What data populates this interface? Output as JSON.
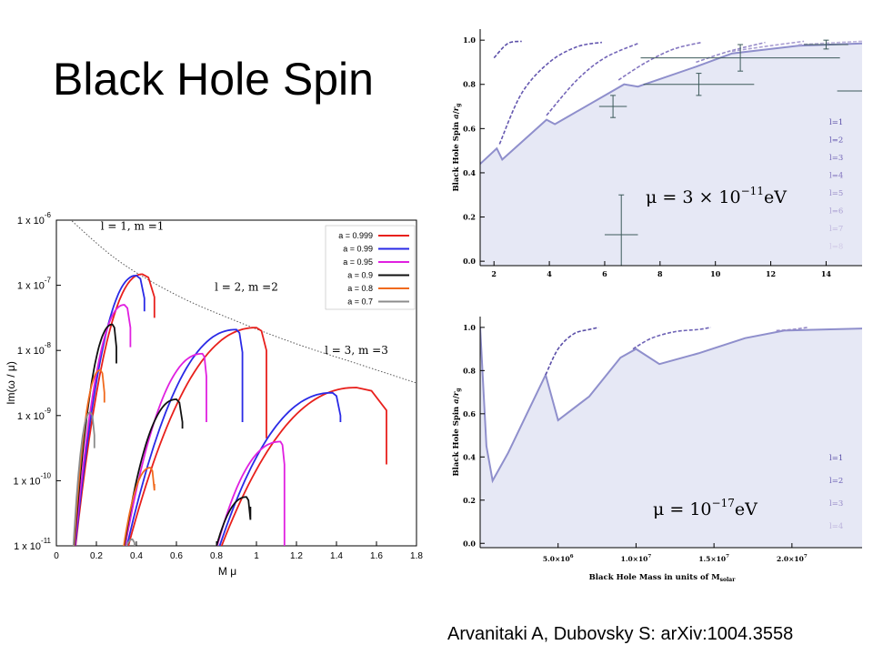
{
  "slide": {
    "title": "Black Hole Spin",
    "citation": "Arvanitaki A, Dubovsky S:  arXiv:1004.3558"
  },
  "chart_data": [
    {
      "id": "superradiance-rates",
      "type": "line",
      "xlabel": "M μ",
      "ylabel": "Im(ω / μ)",
      "xlim": [
        0,
        1.8
      ],
      "ylim_log10": [
        -11,
        -6
      ],
      "x_ticks": [
        "0",
        "0.2",
        "0.4",
        "0.6",
        "0.8",
        "1",
        "1.2",
        "1.4",
        "1.6",
        "1.8"
      ],
      "y_ticks": [
        {
          "mant": "1 x 10",
          "exp": "-6"
        },
        {
          "mant": "1 x 10",
          "exp": "-7"
        },
        {
          "mant": "1 x 10",
          "exp": "-8"
        },
        {
          "mant": "1 x 10",
          "exp": "-9"
        },
        {
          "mant": "1 x 10",
          "exp": "-10"
        },
        {
          "mant": "1 x 10",
          "exp": "-11"
        }
      ],
      "grid": false,
      "legend_position": "top-right",
      "legend": [
        {
          "label": "a = 0.999",
          "color": "#e8201c"
        },
        {
          "label": "a = 0.99",
          "color": "#2a2ae6"
        },
        {
          "label": "a = 0.95",
          "color": "#e020e0"
        },
        {
          "label": "a = 0.9",
          "color": "#111111"
        },
        {
          "label": "a = 0.8",
          "color": "#f06a1e"
        },
        {
          "label": "a = 0.7",
          "color": "#8c8c8c"
        }
      ],
      "annotations": [
        "l = 1, m =1",
        "l = 2, m =2",
        "l = 3, m =3"
      ],
      "series": [
        {
          "name": "a = 0.999",
          "color": "#e8201c",
          "curves": [
            {
              "start": 0.075,
              "peak_x": 0.43,
              "peak_log": -6.83,
              "end": 0.49,
              "end_log": -7.5
            },
            {
              "start": 0.31,
              "peak_x": 1.0,
              "peak_log": -7.65,
              "end": 1.05,
              "end_log": -9.35
            },
            {
              "start": 0.755,
              "peak_x": 1.5,
              "peak_log": -8.57,
              "end": 1.65,
              "end_log": -9.75
            }
          ]
        },
        {
          "name": "a = 0.99",
          "color": "#2a2ae6",
          "curves": [
            {
              "start": 0.075,
              "peak_x": 0.4,
              "peak_log": -6.85,
              "end": 0.44,
              "end_log": -7.4
            },
            {
              "start": 0.31,
              "peak_x": 0.9,
              "peak_log": -7.68,
              "end": 0.93,
              "end_log": -9.1
            },
            {
              "start": 0.755,
              "peak_x": 1.38,
              "peak_log": -8.65,
              "end": 1.42,
              "end_log": -9.1
            }
          ]
        },
        {
          "name": "a = 0.95",
          "color": "#e020e0",
          "curves": [
            {
              "start": 0.075,
              "peak_x": 0.34,
              "peak_log": -7.3,
              "end": 0.37,
              "end_log": -7.95
            },
            {
              "start": 0.31,
              "peak_x": 0.73,
              "peak_log": -8.05,
              "end": 0.75,
              "end_log": -9.1
            },
            {
              "start": 0.755,
              "peak_x": 1.12,
              "peak_log": -9.4,
              "end": 1.14,
              "end_log": -11
            }
          ]
        },
        {
          "name": "a = 0.9",
          "color": "#111111",
          "curves": [
            {
              "start": 0.075,
              "peak_x": 0.28,
              "peak_log": -7.6,
              "end": 0.3,
              "end_log": -8.2
            },
            {
              "start": 0.31,
              "peak_x": 0.6,
              "peak_log": -8.75,
              "end": 0.63,
              "end_log": -9.2
            },
            {
              "start": 0.755,
              "peak_x": 0.95,
              "peak_log": -10.25,
              "end": 0.97,
              "end_log": -10.4
            }
          ]
        },
        {
          "name": "a = 0.8",
          "color": "#f06a1e",
          "curves": [
            {
              "start": 0.075,
              "peak_x": 0.22,
              "peak_log": -8.3,
              "end": 0.24,
              "end_log": -8.8
            },
            {
              "start": 0.31,
              "peak_x": 0.47,
              "peak_log": -9.8,
              "end": 0.49,
              "end_log": -10.05
            }
          ]
        },
        {
          "name": "a = 0.7",
          "color": "#8c8c8c",
          "curves": [
            {
              "start": 0.075,
              "peak_x": 0.17,
              "peak_log": -8.95,
              "end": 0.19,
              "end_log": -9.5
            },
            {
              "start": 0.31,
              "peak_x": 0.38,
              "peak_log": -10.9,
              "end": 0.4,
              "end_log": -11
            }
          ]
        }
      ],
      "dotted_envelope": [
        [
          0.02,
          -5.85
        ],
        [
          0.3,
          -6.6
        ],
        [
          0.6,
          -7.15
        ],
        [
          0.9,
          -7.55
        ],
        [
          1.2,
          -7.9
        ],
        [
          1.5,
          -8.2
        ],
        [
          1.8,
          -8.5
        ]
      ]
    },
    {
      "id": "spin-exclusion-top",
      "type": "area",
      "xlabel": "",
      "ylabel": "Black Hole Spin a/r_g",
      "ylabel_parts": {
        "text": "Black Hole Spin",
        "num": "a",
        "den": "r",
        "den_sub": "g"
      },
      "xlim": [
        1.5,
        15.3
      ],
      "ylim": [
        -0.02,
        1.05
      ],
      "x_ticks": [
        "2",
        "4",
        "6",
        "8",
        "10",
        "12",
        "14"
      ],
      "y_ticks": [
        "0.0",
        "0.2",
        "0.4",
        "0.6",
        "0.8",
        "1.0"
      ],
      "grid": false,
      "shaded_region_color": "#e6e8f5",
      "mass_label": {
        "prefix": "μ = 3 × 10",
        "exp": "−11",
        "unit": "eV"
      },
      "legend_position": "right",
      "legend": [
        {
          "label": "l=1",
          "color": "#5b4fa8"
        },
        {
          "label": "l=2",
          "color": "#6558b0"
        },
        {
          "label": "l=3",
          "color": "#7466b8"
        },
        {
          "label": "l=4",
          "color": "#8476c0"
        },
        {
          "label": "l=5",
          "color": "#968ac8"
        },
        {
          "label": "l=6",
          "color": "#a99ed2"
        },
        {
          "label": "l=7",
          "color": "#bdb4dc"
        },
        {
          "label": "l=8",
          "color": "#d0c9e6"
        }
      ],
      "boundary": [
        [
          1.5,
          0.44
        ],
        [
          2.1,
          0.51
        ],
        [
          2.3,
          0.46
        ],
        [
          3.9,
          0.64
        ],
        [
          4.2,
          0.62
        ],
        [
          6.7,
          0.8
        ],
        [
          7.2,
          0.79
        ],
        [
          9.3,
          0.88
        ],
        [
          10.6,
          0.94
        ],
        [
          13.0,
          0.975
        ],
        [
          15.3,
          0.985
        ]
      ],
      "dashed_curves": [
        {
          "color": "#5b4fa8",
          "points": [
            [
              2.0,
              0.92
            ],
            [
              2.5,
              0.985
            ],
            [
              3.0,
              0.995
            ]
          ]
        },
        {
          "color": "#6558b0",
          "points": [
            [
              2.2,
              0.53
            ],
            [
              3.0,
              0.76
            ],
            [
              4.0,
              0.9
            ],
            [
              5.0,
              0.97
            ],
            [
              5.9,
              0.99
            ]
          ]
        },
        {
          "color": "#7466b8",
          "points": [
            [
              3.9,
              0.66
            ],
            [
              5.0,
              0.82
            ],
            [
              6.0,
              0.92
            ],
            [
              7.2,
              0.985
            ]
          ]
        },
        {
          "color": "#8476c0",
          "points": [
            [
              6.5,
              0.82
            ],
            [
              7.5,
              0.9
            ],
            [
              8.5,
              0.96
            ],
            [
              9.5,
              0.99
            ]
          ]
        },
        {
          "color": "#968ac8",
          "points": [
            [
              9.3,
              0.9
            ],
            [
              10.5,
              0.95
            ],
            [
              11.8,
              0.99
            ]
          ]
        },
        {
          "color": "#a99ed2",
          "points": [
            [
              10.6,
              0.95
            ],
            [
              12.0,
              0.975
            ],
            [
              13.2,
              0.995
            ]
          ]
        },
        {
          "color": "#bdb4dc",
          "points": [
            [
              13.0,
              0.98
            ],
            [
              14.5,
              0.99
            ],
            [
              15.3,
              0.995
            ]
          ]
        }
      ],
      "error_bars": [
        {
          "x": 6.3,
          "y": 0.7,
          "xerr": 0.5,
          "yerr": 0.05
        },
        {
          "x": 6.6,
          "y": 0.12,
          "xerr": 0.6,
          "yerr": 0.18
        },
        {
          "x": 9.4,
          "y": 0.8,
          "xerr": 2.0,
          "yerr": 0.05
        },
        {
          "x": 10.9,
          "y": 0.92,
          "xerr": 3.6,
          "yerr": 0.06
        },
        {
          "x": 14.0,
          "y": 0.98,
          "xerr": 0.8,
          "yerr": 0.02
        },
        {
          "x": 15.0,
          "y": 0.77,
          "xerr": 0.6,
          "yerr": 0.0
        }
      ]
    },
    {
      "id": "spin-exclusion-bottom",
      "type": "area",
      "xlabel": "Black Hole Mass in units of M_solar",
      "xlabel_parts": {
        "text": "Black Hole Mass in units of M",
        "sub": "solar"
      },
      "ylabel": "Black Hole Spin a/r_g",
      "ylabel_parts": {
        "text": "Black Hole Spin",
        "num": "a",
        "den": "r",
        "den_sub": "g"
      },
      "xlim": [
        0,
        24.5
      ],
      "x_unit": "10^6",
      "ylim": [
        -0.02,
        1.05
      ],
      "x_ticks": [
        {
          "mant": "5.0×10",
          "exp": "6",
          "value": 5
        },
        {
          "mant": "1.0×10",
          "exp": "7",
          "value": 10
        },
        {
          "mant": "1.5×10",
          "exp": "7",
          "value": 15
        },
        {
          "mant": "2.0×10",
          "exp": "7",
          "value": 20
        }
      ],
      "y_ticks": [
        "0.0",
        "0.2",
        "0.4",
        "0.6",
        "0.8",
        "1.0"
      ],
      "grid": false,
      "shaded_region_color": "#e6e8f5",
      "mass_label": {
        "prefix": "μ = 10",
        "exp": "−17",
        "unit": "eV"
      },
      "legend_position": "right",
      "legend": [
        {
          "label": "l=1",
          "color": "#5b4fa8"
        },
        {
          "label": "l=2",
          "color": "#6e63b6"
        },
        {
          "label": "l=3",
          "color": "#968ac8"
        },
        {
          "label": "l=4",
          "color": "#bdb4dc"
        }
      ],
      "boundary": [
        [
          0,
          1.0
        ],
        [
          0.4,
          0.45
        ],
        [
          0.8,
          0.29
        ],
        [
          1.8,
          0.42
        ],
        [
          3.0,
          0.6
        ],
        [
          4.2,
          0.78
        ],
        [
          5.0,
          0.57
        ],
        [
          7.0,
          0.68
        ],
        [
          9.0,
          0.86
        ],
        [
          10.0,
          0.9
        ],
        [
          11.5,
          0.83
        ],
        [
          14.0,
          0.88
        ],
        [
          17.0,
          0.95
        ],
        [
          19.5,
          0.985
        ],
        [
          24.5,
          0.995
        ]
      ],
      "dashed_curves": [
        {
          "color": "#5b4fa8",
          "points": [
            [
              4.2,
              0.78
            ],
            [
              5.0,
              0.9
            ],
            [
              6.0,
              0.97
            ],
            [
              7.0,
              0.99
            ],
            [
              7.6,
              1.0
            ]
          ]
        },
        {
          "color": "#6e63b6",
          "points": [
            [
              9.8,
              0.9
            ],
            [
              11.0,
              0.95
            ],
            [
              12.5,
              0.98
            ],
            [
              14.0,
              0.99
            ],
            [
              14.8,
              1.0
            ]
          ]
        },
        {
          "color": "#968ac8",
          "points": [
            [
              19.0,
              0.985
            ],
            [
              20.0,
              0.99
            ],
            [
              21.0,
              1.0
            ]
          ]
        }
      ]
    }
  ]
}
